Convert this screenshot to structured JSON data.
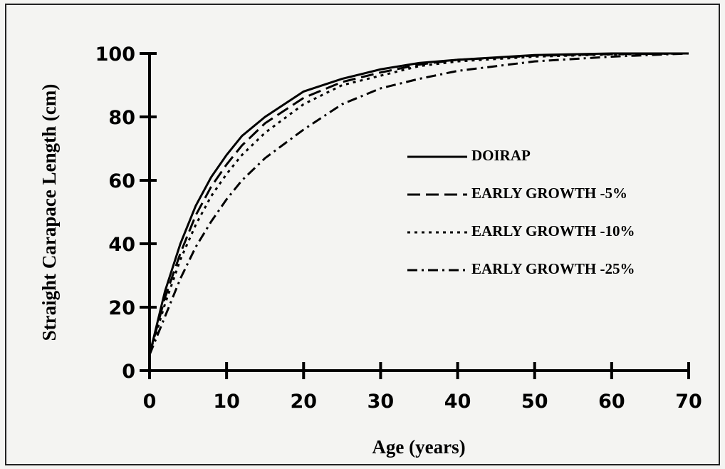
{
  "chart_data": {
    "type": "line",
    "xlabel": "Age (years)",
    "ylabel": "Straight Carapace Length (cm)",
    "x": [
      0,
      2,
      4,
      6,
      8,
      10,
      12,
      15,
      20,
      25,
      30,
      35,
      40,
      50,
      60,
      70
    ],
    "series": [
      {
        "name": "DOIRAP",
        "color": "#000000",
        "linestyle": "solid",
        "values": [
          5,
          25,
          40,
          52,
          61,
          68,
          74,
          80,
          88,
          92,
          95,
          97,
          98,
          99.5,
          100,
          100
        ]
      },
      {
        "name": "EARLY GROWTH -5%",
        "color": "#000000",
        "linestyle": "dashed",
        "values": [
          5,
          23,
          37,
          49,
          58,
          65,
          71,
          78,
          86,
          91,
          94,
          96.5,
          98,
          99.3,
          99.8,
          100
        ]
      },
      {
        "name": "EARLY GROWTH -10%",
        "color": "#000000",
        "linestyle": "dotted",
        "values": [
          5,
          21,
          35,
          46,
          55,
          62,
          68,
          75,
          84,
          90,
          93,
          96,
          97.5,
          99,
          99.7,
          100
        ]
      },
      {
        "name": "EARLY GROWTH -25%",
        "color": "#000000",
        "linestyle": "dashdot",
        "values": [
          5,
          17,
          29,
          39,
          47,
          54,
          60,
          67,
          76,
          84,
          89,
          92,
          94.5,
          97.5,
          99,
          100
        ]
      }
    ],
    "xlim": [
      0,
      70
    ],
    "xticks": [
      0,
      10,
      20,
      30,
      40,
      50,
      60,
      70
    ],
    "ylim": [
      0,
      100
    ],
    "yticks": [
      0,
      20,
      40,
      60,
      80,
      100
    ],
    "grid": false,
    "legend": "center right"
  }
}
